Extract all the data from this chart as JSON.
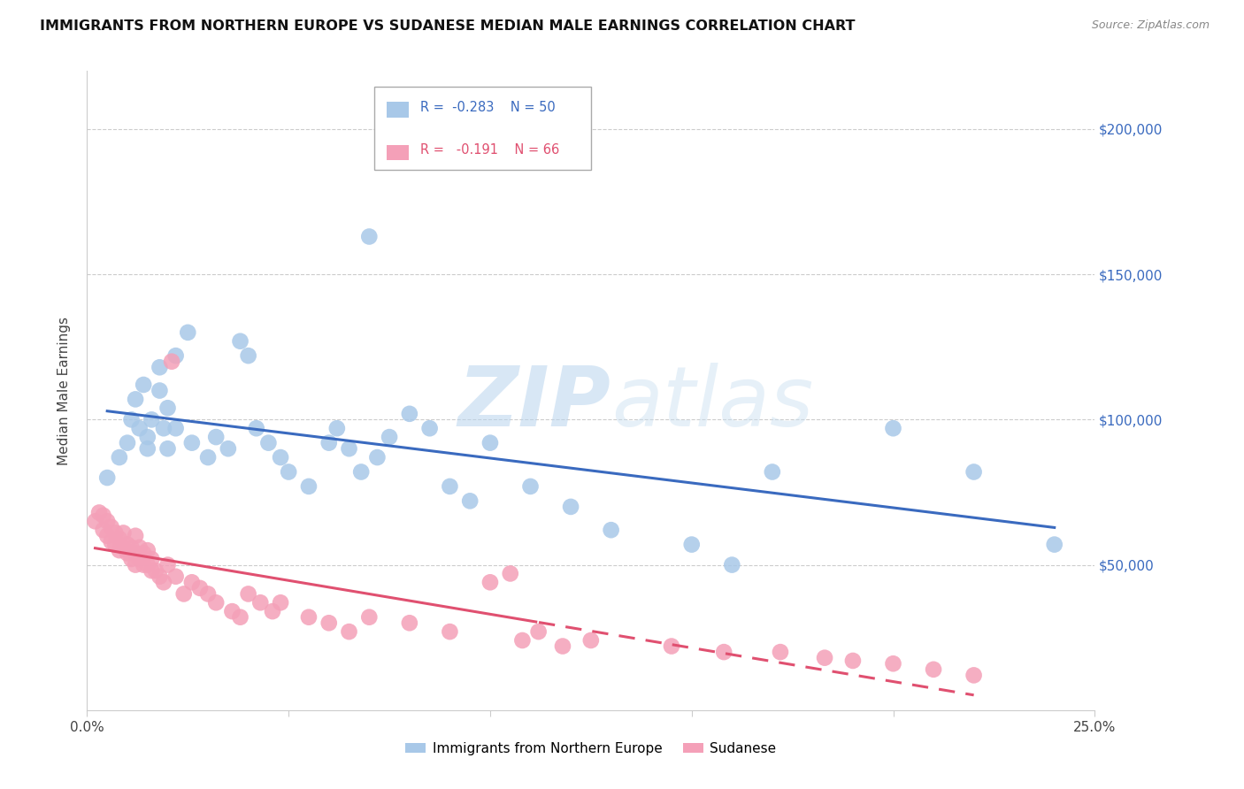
{
  "title": "IMMIGRANTS FROM NORTHERN EUROPE VS SUDANESE MEDIAN MALE EARNINGS CORRELATION CHART",
  "source": "Source: ZipAtlas.com",
  "ylabel": "Median Male Earnings",
  "xlim": [
    0.0,
    0.25
  ],
  "ylim": [
    0,
    220000
  ],
  "blue_R": "-0.283",
  "blue_N": "50",
  "pink_R": "-0.191",
  "pink_N": "66",
  "blue_color": "#a8c8e8",
  "pink_color": "#f4a0b8",
  "blue_line_color": "#3a6abf",
  "pink_line_color": "#e05070",
  "background_color": "#ffffff",
  "grid_color": "#cccccc",
  "watermark_zip": "ZIP",
  "watermark_atlas": "atlas",
  "legend_label_blue": "Immigrants from Northern Europe",
  "legend_label_pink": "Sudanese",
  "blue_scatter_x": [
    0.005,
    0.008,
    0.01,
    0.011,
    0.012,
    0.013,
    0.014,
    0.015,
    0.015,
    0.016,
    0.018,
    0.018,
    0.019,
    0.02,
    0.02,
    0.022,
    0.022,
    0.025,
    0.026,
    0.03,
    0.032,
    0.035,
    0.038,
    0.04,
    0.042,
    0.045,
    0.048,
    0.05,
    0.055,
    0.06,
    0.062,
    0.065,
    0.068,
    0.07,
    0.072,
    0.075,
    0.08,
    0.085,
    0.09,
    0.095,
    0.1,
    0.11,
    0.12,
    0.13,
    0.15,
    0.16,
    0.17,
    0.2,
    0.22,
    0.24
  ],
  "blue_scatter_y": [
    80000,
    87000,
    92000,
    100000,
    107000,
    97000,
    112000,
    90000,
    94000,
    100000,
    118000,
    110000,
    97000,
    104000,
    90000,
    122000,
    97000,
    130000,
    92000,
    87000,
    94000,
    90000,
    127000,
    122000,
    97000,
    92000,
    87000,
    82000,
    77000,
    92000,
    97000,
    90000,
    82000,
    163000,
    87000,
    94000,
    102000,
    97000,
    77000,
    72000,
    92000,
    77000,
    70000,
    62000,
    57000,
    50000,
    82000,
    97000,
    82000,
    57000
  ],
  "pink_scatter_x": [
    0.002,
    0.003,
    0.004,
    0.004,
    0.005,
    0.005,
    0.006,
    0.006,
    0.007,
    0.007,
    0.008,
    0.008,
    0.009,
    0.009,
    0.01,
    0.01,
    0.011,
    0.011,
    0.012,
    0.012,
    0.012,
    0.013,
    0.013,
    0.014,
    0.014,
    0.015,
    0.015,
    0.016,
    0.016,
    0.017,
    0.018,
    0.019,
    0.02,
    0.021,
    0.022,
    0.024,
    0.026,
    0.028,
    0.03,
    0.032,
    0.036,
    0.038,
    0.04,
    0.043,
    0.046,
    0.048,
    0.055,
    0.06,
    0.065,
    0.07,
    0.08,
    0.09,
    0.1,
    0.105,
    0.108,
    0.112,
    0.118,
    0.125,
    0.145,
    0.158,
    0.172,
    0.183,
    0.19,
    0.2,
    0.21,
    0.22
  ],
  "pink_scatter_y": [
    65000,
    68000,
    62000,
    67000,
    60000,
    65000,
    58000,
    63000,
    57000,
    61000,
    55000,
    59000,
    56000,
    61000,
    54000,
    57000,
    52000,
    56000,
    50000,
    54000,
    60000,
    52000,
    56000,
    50000,
    54000,
    50000,
    55000,
    48000,
    52000,
    48000,
    46000,
    44000,
    50000,
    120000,
    46000,
    40000,
    44000,
    42000,
    40000,
    37000,
    34000,
    32000,
    40000,
    37000,
    34000,
    37000,
    32000,
    30000,
    27000,
    32000,
    30000,
    27000,
    44000,
    47000,
    24000,
    27000,
    22000,
    24000,
    22000,
    20000,
    20000,
    18000,
    17000,
    16000,
    14000,
    12000
  ]
}
